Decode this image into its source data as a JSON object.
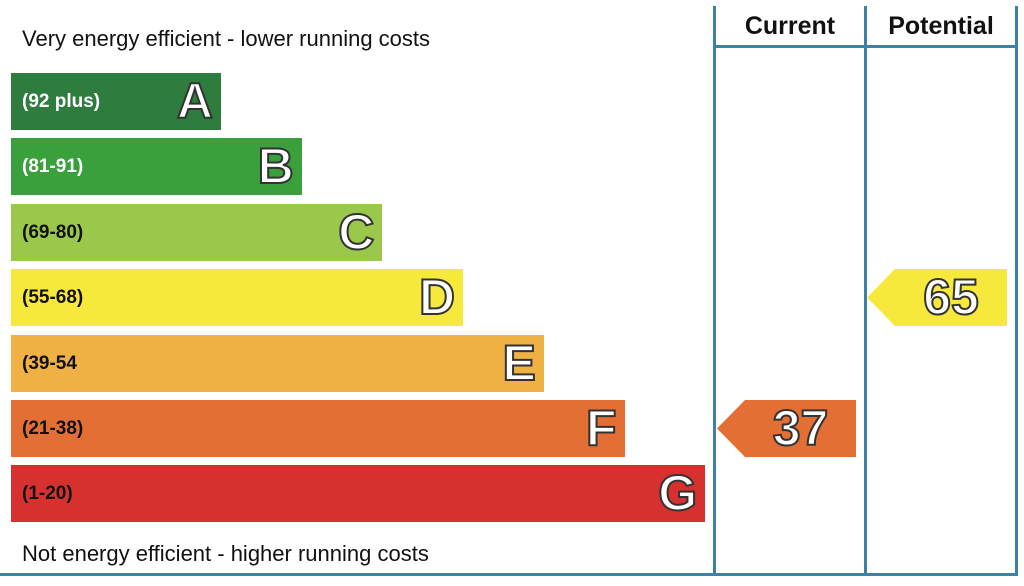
{
  "captions": {
    "top": "Very energy efficient - lower running costs",
    "bottom": "Not energy efficient - higher running costs"
  },
  "columns": {
    "current": "Current",
    "potential": "Potential"
  },
  "chart_data": {
    "type": "bar",
    "bands": [
      {
        "letter": "A",
        "range": "(92 plus)",
        "color": "#2e7d3e",
        "text_color": "#ffffff"
      },
      {
        "letter": "B",
        "range": "(81-91)",
        "color": "#3aa03c",
        "text_color": "#ffffff"
      },
      {
        "letter": "C",
        "range": "(69-80)",
        "color": "#9ac84b",
        "text_color": "#111111"
      },
      {
        "letter": "D",
        "range": "(55-68)",
        "color": "#f7e93b",
        "text_color": "#111111"
      },
      {
        "letter": "E",
        "range": "(39-54",
        "color": "#efb143",
        "text_color": "#111111"
      },
      {
        "letter": "F",
        "range": "(21-38)",
        "color": "#e36f34",
        "text_color": "#111111"
      },
      {
        "letter": "G",
        "range": "(1-20)",
        "color": "#d6312f",
        "text_color": "#111111"
      }
    ],
    "current": {
      "value": 37,
      "band": "F",
      "color": "#e36f34"
    },
    "potential": {
      "value": 65,
      "band": "D",
      "color": "#f7e93b"
    }
  }
}
